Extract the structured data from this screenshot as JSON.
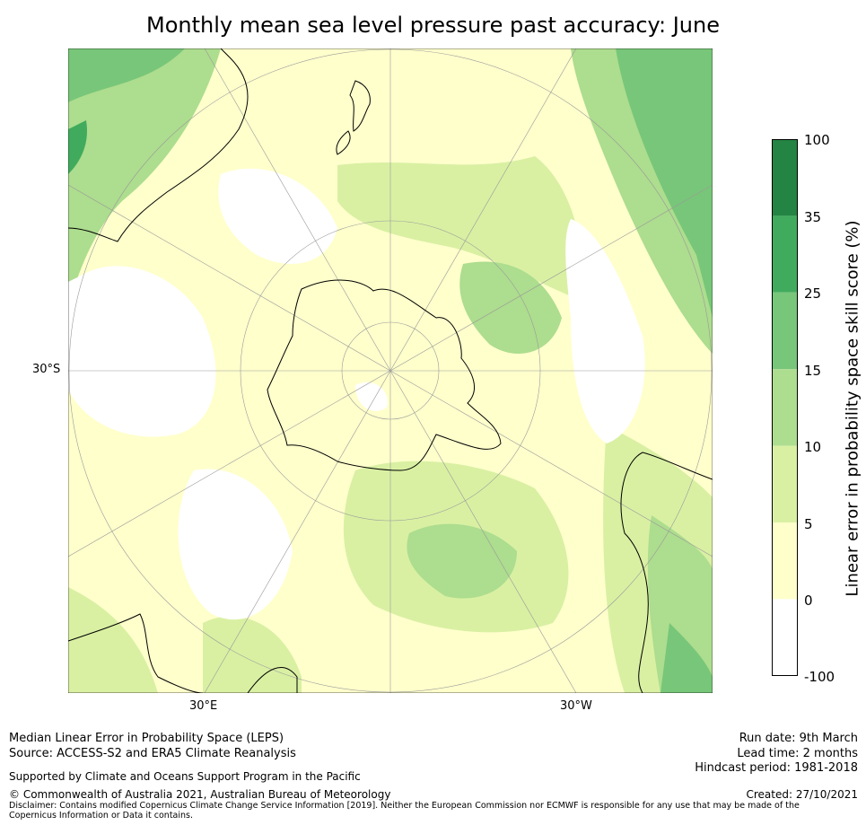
{
  "title": "Monthly mean sea level pressure past accuracy: June",
  "map": {
    "projection": "south polar stereographic",
    "latitude_label": "30°S",
    "longitude_labels": [
      "30°E",
      "30°W"
    ],
    "land_outline_color": "#000000",
    "fill_colors": {
      "white": "#ffffff",
      "cream": "#ffffcc",
      "light": "#d9f0a3",
      "mid": "#addd8e",
      "green": "#78c679",
      "dark": "#41ab5d"
    }
  },
  "colorbar": {
    "label": "Linear error in probability space skill score (%)",
    "ticks": [
      "100",
      "35",
      "25",
      "15",
      "10",
      "5",
      "0",
      "-100"
    ],
    "bins": [
      {
        "from": 35,
        "to": 100,
        "color": "#238443"
      },
      {
        "from": 25,
        "to": 35,
        "color": "#41ab5d"
      },
      {
        "from": 15,
        "to": 25,
        "color": "#78c679"
      },
      {
        "from": 10,
        "to": 15,
        "color": "#addd8e"
      },
      {
        "from": 5,
        "to": 10,
        "color": "#d9f0a3"
      },
      {
        "from": 0,
        "to": 5,
        "color": "#ffffcc"
      },
      {
        "from": -100,
        "to": 0,
        "color": "#ffffff"
      }
    ]
  },
  "footer": {
    "method": "Median Linear Error in Probability Space (LEPS)",
    "source": "Source: ACCESS-S2 and ERA5 Climate Reanalysis",
    "support": "Supported by Climate and Oceans Support Program in the Pacific",
    "copyright": "© Commonwealth of Australia 2021, Australian Bureau of Meteorology",
    "disclaimer": "Disclaimer: Contains modified Copernicus Climate Change Service Information [2019]. Neither the European Commission nor ECMWF is responsible for any use that may be made of the Copernicus Information or Data it contains.",
    "run_date": "Run date: 9th March",
    "lead_time": "Lead time: 2 months",
    "hindcast": "Hindcast period: 1981-2018",
    "created": "Created: 27/10/2021"
  }
}
